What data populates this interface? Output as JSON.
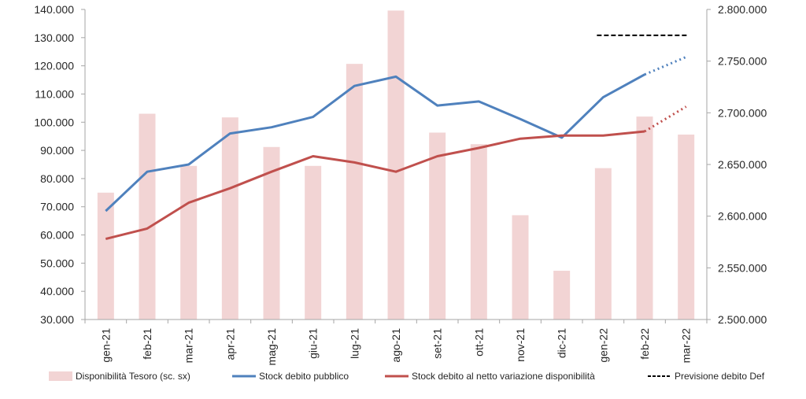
{
  "chart_data": {
    "type": "bar",
    "title": "",
    "xlabel": "",
    "ylabel": "",
    "categories": [
      "gen-21",
      "feb-21",
      "mar-21",
      "apr-21",
      "mag-21",
      "giu-21",
      "lug-21",
      "ago-21",
      "set-21",
      "ott-21",
      "nov-21",
      "dic-21",
      "gen-22",
      "feb-22",
      "mar-22"
    ],
    "ylim_left": [
      30000,
      140000
    ],
    "ylim_right": [
      2500000,
      2800000
    ],
    "yticks_left": [
      "30.000",
      "40.000",
      "50.000",
      "60.000",
      "70.000",
      "80.000",
      "90.000",
      "100.000",
      "110.000",
      "120.000",
      "130.000",
      "140.000"
    ],
    "yticks_right": [
      "2.500.000",
      "2.550.000",
      "2.600.000",
      "2.650.000",
      "2.700.000",
      "2.750.000",
      "2.800.000"
    ],
    "grid": false,
    "legend_position": "bottom",
    "series": [
      {
        "name": "Disponibilità Tesoro (sc. sx)",
        "kind": "bar",
        "axis": "left",
        "color": "#f2d4d4",
        "values": [
          75000,
          103000,
          84500,
          101700,
          91200,
          84500,
          120700,
          139600,
          96300,
          92200,
          67000,
          47300,
          83700,
          102000,
          95600
        ]
      },
      {
        "name": "Stock debito pubblico",
        "kind": "line",
        "axis": "right",
        "color": "#4f81bd",
        "values": [
          2605000,
          2643000,
          2650000,
          2680000,
          2686000,
          2696000,
          2726000,
          2735000,
          2707000,
          2711000,
          2694000,
          2676000,
          2715000,
          2737000,
          null
        ],
        "forecast": [
          {
            "x": "feb-22",
            "y": 2737000
          },
          {
            "x": "mar-22",
            "y": 2754000
          }
        ]
      },
      {
        "name": "Stock debito al netto variazione disponibilità",
        "kind": "line",
        "axis": "right",
        "color": "#c0504d",
        "values": [
          2578000,
          2588000,
          2613000,
          2627000,
          2643000,
          2658000,
          2652000,
          2643000,
          2658000,
          2666000,
          2675000,
          2678000,
          2678000,
          2682000,
          null
        ],
        "forecast": [
          {
            "x": "feb-22",
            "y": 2682000
          },
          {
            "x": "mar-22",
            "y": 2706000
          }
        ]
      },
      {
        "name": "Previsione debito Def",
        "kind": "dashed-line",
        "axis": "right",
        "color": "#000000",
        "points": [
          {
            "x": "gen-22",
            "y": 2775000
          },
          {
            "x": "mar-22",
            "y": 2775000
          }
        ]
      }
    ]
  }
}
